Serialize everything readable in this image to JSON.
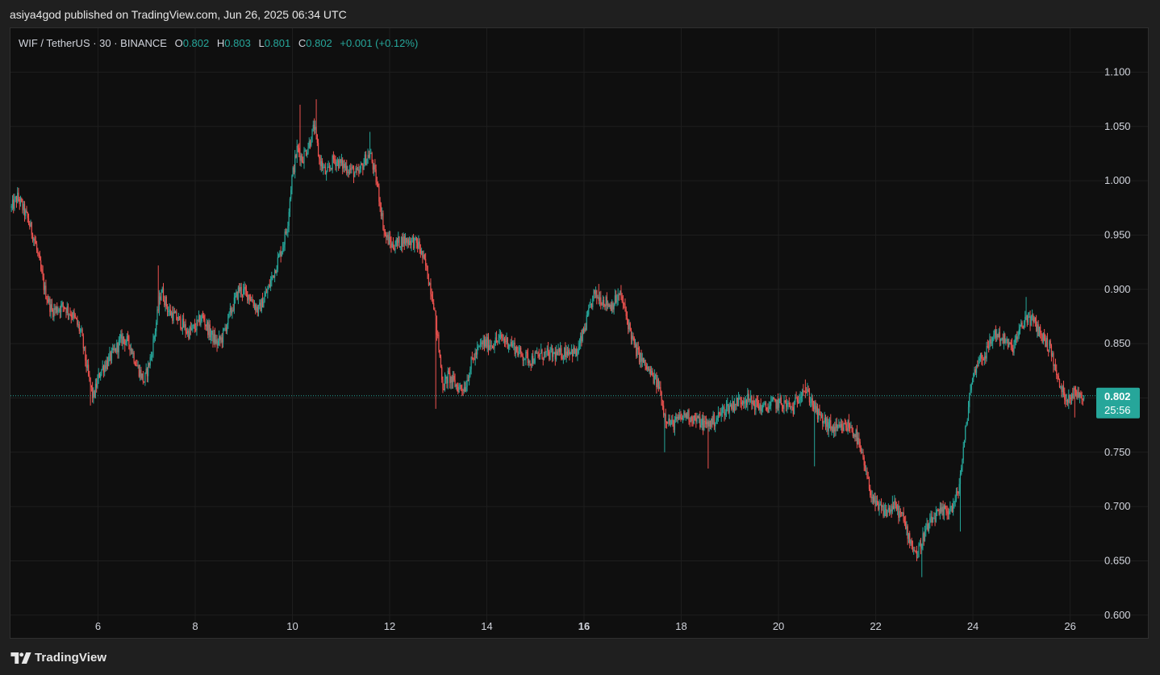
{
  "header": {
    "published_text": "asiya4god published on TradingView.com, Jun 26, 2025 06:34 UTC"
  },
  "legend": {
    "symbol": "WIF / TetherUS · 30 · BINANCE",
    "o_label": "O",
    "o_value": "0.802",
    "h_label": "H",
    "h_value": "0.803",
    "l_label": "L",
    "l_value": "0.801",
    "c_label": "C",
    "c_value": "0.802",
    "change": "+0.001 (+0.12%)"
  },
  "price_tag": {
    "price": "0.802",
    "countdown": "25:56",
    "color": "#26a69a"
  },
  "footer": {
    "logo_text": "TradingView"
  },
  "colors": {
    "up": "#26a69a",
    "down": "#ef5350",
    "background": "#0f0f0f",
    "grid": "#1e1e1e"
  },
  "chart_data": {
    "type": "candlestick",
    "symbol": "WIF / TetherUS",
    "interval": "30",
    "exchange": "BINANCE",
    "y_ticks": [
      "1.100",
      "1.050",
      "1.000",
      "0.950",
      "0.900",
      "0.850",
      "0.800",
      "0.750",
      "0.700",
      "0.650",
      "0.600"
    ],
    "y_tick_values": [
      1.1,
      1.05,
      1.0,
      0.95,
      0.9,
      0.85,
      0.8,
      0.75,
      0.7,
      0.65,
      0.6
    ],
    "ylim": [
      0.585,
      1.133
    ],
    "x_ticks": [
      "6",
      "8",
      "10",
      "12",
      "14",
      "16",
      "18",
      "20",
      "22",
      "24",
      "26"
    ],
    "x_tick_days": [
      6,
      8,
      10,
      12,
      14,
      16,
      18,
      20,
      22,
      24,
      26
    ],
    "bold_x_tick": "16",
    "xlim_days": [
      4.2,
      27.6
    ],
    "last_price": 0.802,
    "grid": true,
    "anchors": [
      [
        4.22,
        0.975
      ],
      [
        4.35,
        0.985
      ],
      [
        4.55,
        0.965
      ],
      [
        4.7,
        0.945
      ],
      [
        4.9,
        0.9
      ],
      [
        5.05,
        0.88
      ],
      [
        5.3,
        0.885
      ],
      [
        5.5,
        0.875
      ],
      [
        5.65,
        0.86
      ],
      [
        5.8,
        0.82
      ],
      [
        5.9,
        0.8
      ],
      [
        6.05,
        0.825
      ],
      [
        6.3,
        0.84
      ],
      [
        6.5,
        0.855
      ],
      [
        6.65,
        0.85
      ],
      [
        6.8,
        0.83
      ],
      [
        6.95,
        0.815
      ],
      [
        7.1,
        0.84
      ],
      [
        7.2,
        0.87
      ],
      [
        7.3,
        0.9
      ],
      [
        7.45,
        0.88
      ],
      [
        7.7,
        0.87
      ],
      [
        7.85,
        0.86
      ],
      [
        8.0,
        0.865
      ],
      [
        8.15,
        0.875
      ],
      [
        8.3,
        0.86
      ],
      [
        8.45,
        0.85
      ],
      [
        8.55,
        0.855
      ],
      [
        8.7,
        0.875
      ],
      [
        8.9,
        0.9
      ],
      [
        9.1,
        0.895
      ],
      [
        9.3,
        0.88
      ],
      [
        9.5,
        0.9
      ],
      [
        9.65,
        0.92
      ],
      [
        9.8,
        0.94
      ],
      [
        9.9,
        0.96
      ],
      [
        9.98,
        1.0
      ],
      [
        10.1,
        1.03
      ],
      [
        10.2,
        1.02
      ],
      [
        10.35,
        1.035
      ],
      [
        10.45,
        1.05
      ],
      [
        10.55,
        1.02
      ],
      [
        10.7,
        1.005
      ],
      [
        10.85,
        1.02
      ],
      [
        11.0,
        1.015
      ],
      [
        11.2,
        1.01
      ],
      [
        11.35,
        1.005
      ],
      [
        11.5,
        1.02
      ],
      [
        11.6,
        1.025
      ],
      [
        11.75,
        0.995
      ],
      [
        11.9,
        0.95
      ],
      [
        12.05,
        0.94
      ],
      [
        12.25,
        0.945
      ],
      [
        12.45,
        0.945
      ],
      [
        12.6,
        0.94
      ],
      [
        12.75,
        0.92
      ],
      [
        12.9,
        0.89
      ],
      [
        13.0,
        0.85
      ],
      [
        13.1,
        0.81
      ],
      [
        13.2,
        0.82
      ],
      [
        13.4,
        0.81
      ],
      [
        13.55,
        0.81
      ],
      [
        13.7,
        0.835
      ],
      [
        13.9,
        0.85
      ],
      [
        14.1,
        0.85
      ],
      [
        14.3,
        0.855
      ],
      [
        14.5,
        0.85
      ],
      [
        14.7,
        0.84
      ],
      [
        14.9,
        0.835
      ],
      [
        15.1,
        0.84
      ],
      [
        15.3,
        0.84
      ],
      [
        15.5,
        0.84
      ],
      [
        15.7,
        0.845
      ],
      [
        15.85,
        0.84
      ],
      [
        16.05,
        0.87
      ],
      [
        16.2,
        0.895
      ],
      [
        16.4,
        0.89
      ],
      [
        16.55,
        0.885
      ],
      [
        16.75,
        0.895
      ],
      [
        16.9,
        0.87
      ],
      [
        17.05,
        0.845
      ],
      [
        17.25,
        0.83
      ],
      [
        17.4,
        0.82
      ],
      [
        17.55,
        0.81
      ],
      [
        17.65,
        0.785
      ],
      [
        17.8,
        0.775
      ],
      [
        17.95,
        0.78
      ],
      [
        18.1,
        0.785
      ],
      [
        18.3,
        0.78
      ],
      [
        18.5,
        0.775
      ],
      [
        18.7,
        0.78
      ],
      [
        18.9,
        0.79
      ],
      [
        19.1,
        0.795
      ],
      [
        19.3,
        0.8
      ],
      [
        19.5,
        0.795
      ],
      [
        19.7,
        0.79
      ],
      [
        19.9,
        0.795
      ],
      [
        20.1,
        0.795
      ],
      [
        20.3,
        0.79
      ],
      [
        20.5,
        0.81
      ],
      [
        20.65,
        0.8
      ],
      [
        20.8,
        0.785
      ],
      [
        21.0,
        0.775
      ],
      [
        21.2,
        0.77
      ],
      [
        21.45,
        0.775
      ],
      [
        21.6,
        0.765
      ],
      [
        21.75,
        0.74
      ],
      [
        21.85,
        0.72
      ],
      [
        22.0,
        0.7
      ],
      [
        22.2,
        0.695
      ],
      [
        22.4,
        0.7
      ],
      [
        22.55,
        0.69
      ],
      [
        22.7,
        0.67
      ],
      [
        22.85,
        0.655
      ],
      [
        23.0,
        0.675
      ],
      [
        23.2,
        0.69
      ],
      [
        23.4,
        0.695
      ],
      [
        23.6,
        0.7
      ],
      [
        23.7,
        0.715
      ],
      [
        23.8,
        0.75
      ],
      [
        23.95,
        0.81
      ],
      [
        24.1,
        0.835
      ],
      [
        24.25,
        0.84
      ],
      [
        24.45,
        0.86
      ],
      [
        24.6,
        0.855
      ],
      [
        24.8,
        0.845
      ],
      [
        24.95,
        0.86
      ],
      [
        25.1,
        0.875
      ],
      [
        25.25,
        0.87
      ],
      [
        25.45,
        0.855
      ],
      [
        25.6,
        0.845
      ],
      [
        25.75,
        0.815
      ],
      [
        25.9,
        0.8
      ],
      [
        26.1,
        0.805
      ],
      [
        26.3,
        0.802
      ]
    ],
    "spikes_high": [
      [
        10.5,
        1.075
      ],
      [
        11.6,
        1.045
      ],
      [
        10.15,
        1.07
      ],
      [
        7.25,
        0.922
      ],
      [
        16.3,
        0.905
      ],
      [
        25.1,
        0.893
      ],
      [
        20.55,
        0.817
      ],
      [
        22.35,
        0.71
      ]
    ],
    "spikes_low": [
      [
        5.85,
        0.793
      ],
      [
        12.95,
        0.79
      ],
      [
        18.55,
        0.735
      ],
      [
        20.75,
        0.737
      ],
      [
        22.95,
        0.635
      ],
      [
        23.75,
        0.677
      ],
      [
        17.65,
        0.75
      ],
      [
        26.1,
        0.782
      ]
    ]
  }
}
